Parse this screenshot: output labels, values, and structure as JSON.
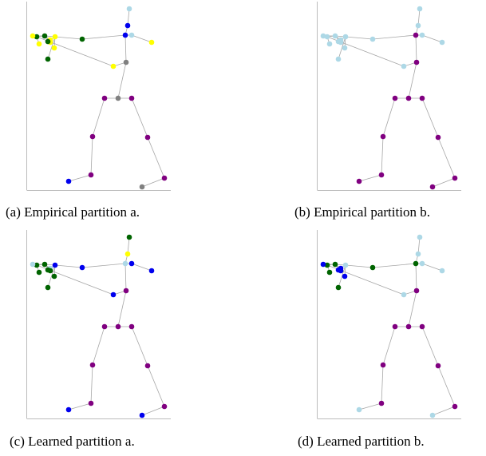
{
  "colors": {
    "bone": "#a6a6a6",
    "frame": "#bdbdbd",
    "yellow": "#ffff00",
    "green": "#006400",
    "blue": "#0000ee",
    "lightblue": "#add8e6",
    "purple": "#800080",
    "gray": "#808080"
  },
  "panels": [
    {
      "id": "a",
      "caption": "(a) Empirical partition a.",
      "joints": [
        "purple",
        "purple",
        "purple",
        "blue",
        "purple",
        "purple",
        "purple",
        "gray",
        "gray",
        "gray",
        "blue",
        "blue",
        "lightblue",
        "lightblue",
        "yellow",
        "yellow",
        "yellow",
        "green",
        "green",
        "green",
        "green",
        "yellow",
        "yellow",
        "yellow",
        "yellow",
        "green",
        "yellow"
      ]
    },
    {
      "id": "b",
      "caption": "(b) Empirical partition b.",
      "joints": [
        "purple",
        "purple",
        "purple",
        "purple",
        "purple",
        "purple",
        "purple",
        "purple",
        "purple",
        "purple",
        "purple",
        "lightblue",
        "lightblue",
        "lightblue",
        "lightblue",
        "lightblue",
        "lightblue",
        "lightblue",
        "lightblue",
        "lightblue",
        "lightblue",
        "lightblue",
        "lightblue",
        "lightblue",
        "lightblue",
        "lightblue",
        "lightblue"
      ]
    },
    {
      "id": "c",
      "caption": "(c) Learned partition a.",
      "joints": [
        "purple",
        "purple",
        "purple",
        "blue",
        "purple",
        "purple",
        "purple",
        "blue",
        "purple",
        "purple",
        "lightblue",
        "yellow",
        "green",
        "blue",
        "blue",
        "blue",
        "blue",
        "green",
        "green",
        "green",
        "blue",
        "lightblue",
        "lightblue",
        "green",
        "green",
        "green",
        "green"
      ]
    },
    {
      "id": "d",
      "caption": "(d) Learned partition b.",
      "joints": [
        "purple",
        "purple",
        "purple",
        "lightblue",
        "purple",
        "purple",
        "purple",
        "lightblue",
        "purple",
        "purple",
        "green",
        "lightblue",
        "lightblue",
        "lightblue",
        "lightblue",
        "lightblue",
        "lightblue",
        "green",
        "green",
        "green",
        "green",
        "blue",
        "blue",
        "blue",
        "green",
        "blue",
        "blue"
      ]
    }
  ]
}
